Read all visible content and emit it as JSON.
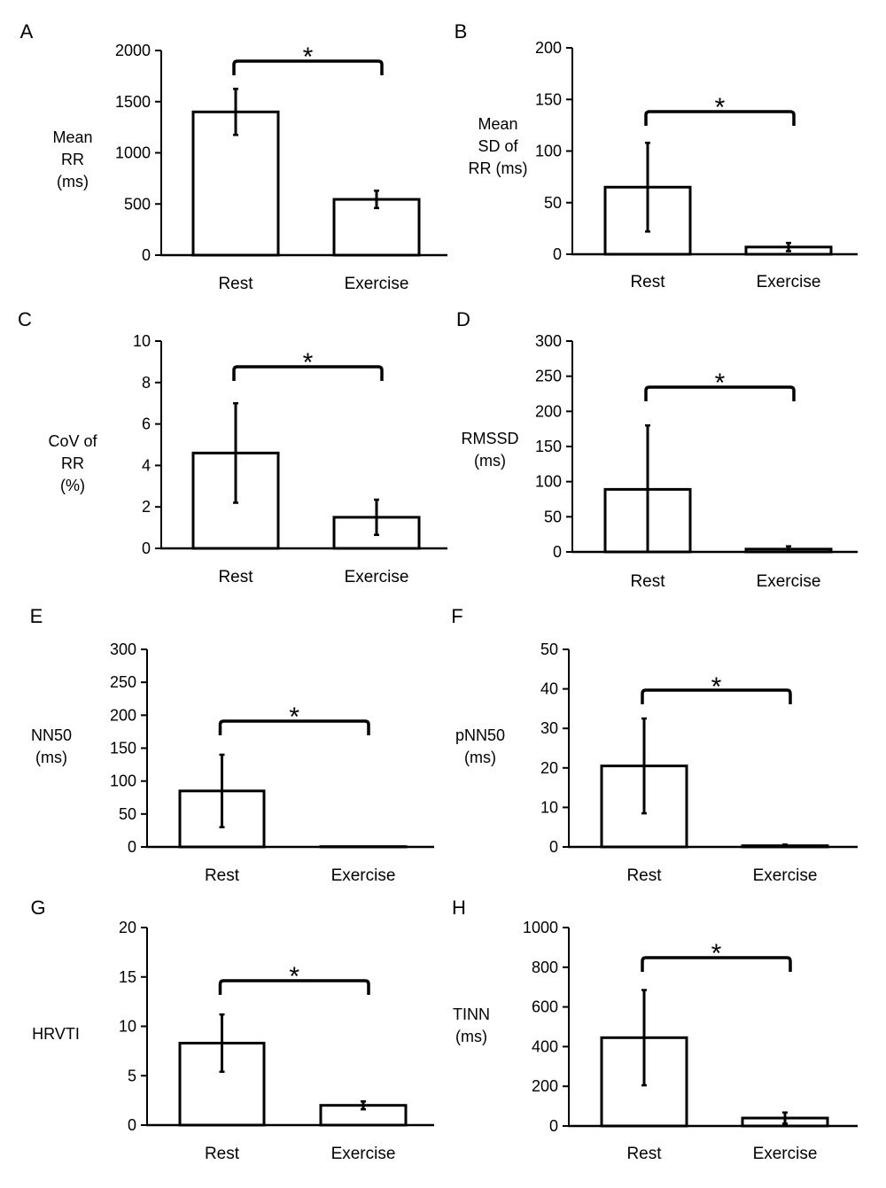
{
  "chart_data": [
    {
      "panel": "A",
      "type": "bar",
      "categories": [
        "Rest",
        "Exercise"
      ],
      "values": [
        1400,
        545
      ],
      "errors": [
        225,
        85
      ],
      "ylabel": [
        "Mean",
        "RR",
        "(ms)"
      ],
      "ylim": [
        0,
        2000
      ],
      "yticks": [
        0,
        500,
        1000,
        1500,
        2000
      ],
      "significance": "*",
      "color": "#ffffff",
      "edge_color": "#000000"
    },
    {
      "panel": "B",
      "type": "bar",
      "categories": [
        "Rest",
        "Exercise"
      ],
      "values": [
        65,
        7
      ],
      "errors": [
        43,
        4
      ],
      "ylabel": [
        "Mean",
        "SD of",
        "RR (ms)"
      ],
      "ylim": [
        0,
        200
      ],
      "yticks": [
        0,
        50,
        100,
        150,
        200
      ],
      "significance": "*",
      "color": "#ffffff",
      "edge_color": "#000000"
    },
    {
      "panel": "C",
      "type": "bar",
      "categories": [
        "Rest",
        "Exercise"
      ],
      "values": [
        4.6,
        1.5
      ],
      "errors": [
        2.4,
        0.85
      ],
      "ylabel": [
        "CoV of",
        "RR",
        "(%)"
      ],
      "ylim": [
        0,
        10
      ],
      "yticks": [
        0,
        2,
        4,
        6,
        8,
        10
      ],
      "significance": "*",
      "color": "#ffffff",
      "edge_color": "#000000"
    },
    {
      "panel": "D",
      "type": "bar",
      "categories": [
        "Rest",
        "Exercise"
      ],
      "values": [
        89,
        4
      ],
      "errors": [
        91,
        4
      ],
      "ylabel": [
        "RMSSD",
        "(ms)"
      ],
      "ylim": [
        0,
        300
      ],
      "yticks": [
        0,
        50,
        100,
        150,
        200,
        250,
        300
      ],
      "significance": "*",
      "color": "#ffffff",
      "edge_color": "#000000"
    },
    {
      "panel": "E",
      "type": "bar",
      "categories": [
        "Rest",
        "Exercise"
      ],
      "values": [
        85,
        0.5
      ],
      "errors": [
        55,
        0.5
      ],
      "ylabel": [
        "NN50",
        "(ms)"
      ],
      "ylim": [
        0,
        300
      ],
      "yticks": [
        0,
        50,
        100,
        150,
        200,
        250,
        300
      ],
      "significance": "*",
      "color": "#ffffff",
      "edge_color": "#000000"
    },
    {
      "panel": "F",
      "type": "bar",
      "categories": [
        "Rest",
        "Exercise"
      ],
      "values": [
        20.5,
        0.3
      ],
      "errors": [
        12,
        0.3
      ],
      "ylabel": [
        "pNN50",
        "(ms)"
      ],
      "ylim": [
        0,
        50
      ],
      "yticks": [
        0,
        10,
        20,
        30,
        40,
        50
      ],
      "significance": "*",
      "color": "#ffffff",
      "edge_color": "#000000"
    },
    {
      "panel": "G",
      "type": "bar",
      "categories": [
        "Rest",
        "Exercise"
      ],
      "values": [
        8.3,
        2.0
      ],
      "errors": [
        2.9,
        0.4
      ],
      "ylabel": [
        "HRVTI"
      ],
      "ylim": [
        0,
        20
      ],
      "yticks": [
        0,
        5,
        10,
        15,
        20
      ],
      "significance": "*",
      "color": "#ffffff",
      "edge_color": "#000000"
    },
    {
      "panel": "H",
      "type": "bar",
      "categories": [
        "Rest",
        "Exercise"
      ],
      "values": [
        445,
        40
      ],
      "errors": [
        240,
        28
      ],
      "ylabel": [
        "TINN",
        "(ms)"
      ],
      "ylim": [
        0,
        1000
      ],
      "yticks": [
        0,
        200,
        400,
        600,
        800,
        1000
      ],
      "significance": "*",
      "color": "#ffffff",
      "edge_color": "#000000"
    }
  ]
}
